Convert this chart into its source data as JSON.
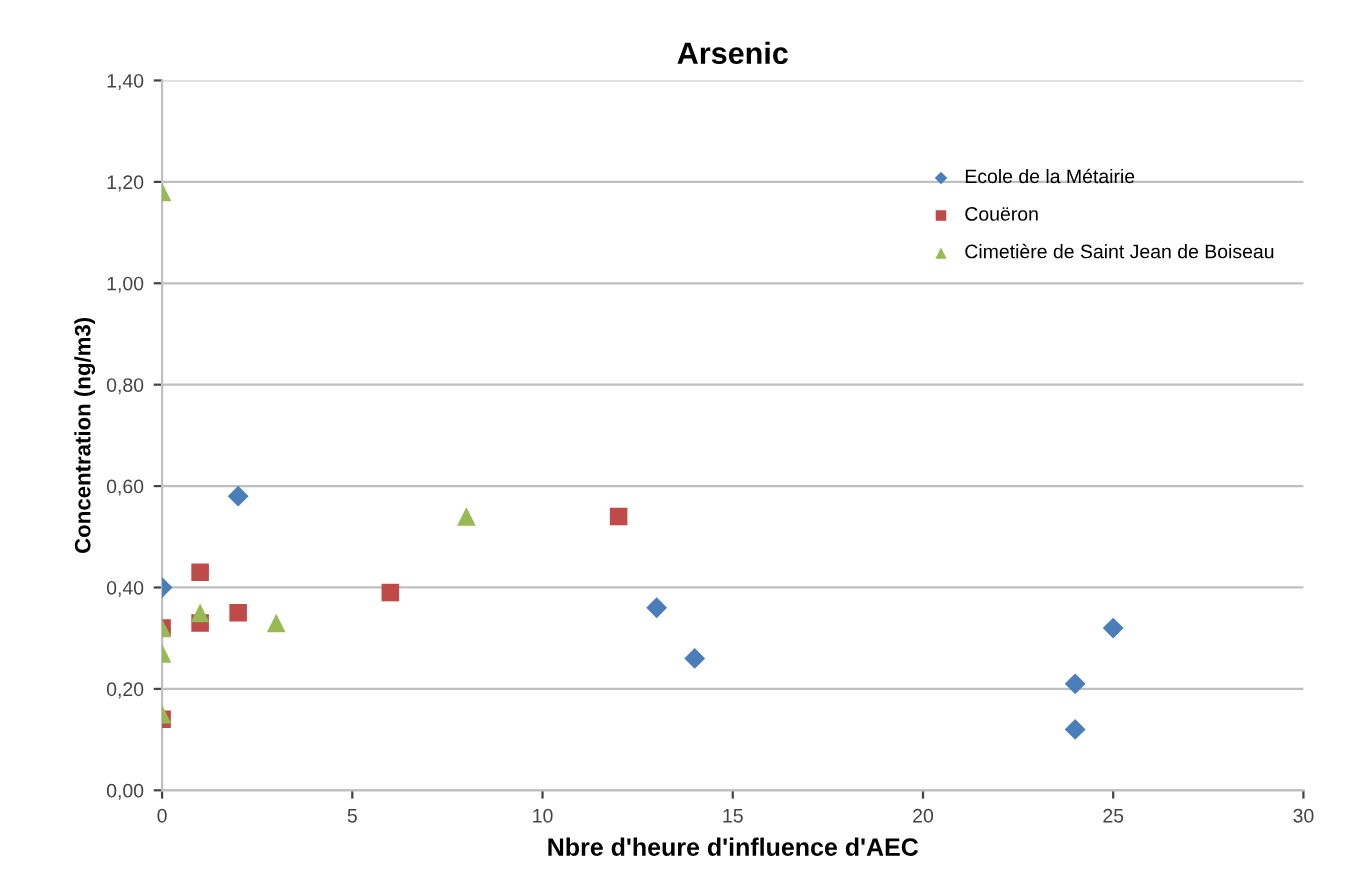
{
  "chart_data": {
    "type": "scatter",
    "title": "Arsenic",
    "xlabel": "Nbre d'heure d'influence d'AEC",
    "ylabel": "Concentration (ng/m3)",
    "series": [
      {
        "name": "Ecole de la Métairie",
        "color": "#4a7ebb",
        "marker": "diamond",
        "x": [
          0,
          2,
          13,
          14,
          24,
          24,
          25
        ],
        "values": [
          0.4,
          0.58,
          0.36,
          0.26,
          0.21,
          0.12,
          0.32
        ]
      },
      {
        "name": "Couëron",
        "color": "#be4b48",
        "marker": "square",
        "x": [
          0,
          0,
          1,
          1,
          2,
          6,
          12
        ],
        "values": [
          0.32,
          0.14,
          0.43,
          0.33,
          0.35,
          0.39,
          0.54
        ]
      },
      {
        "name": "Cimetière de Saint Jean de Boiseau",
        "color": "#98b954",
        "marker": "triangle",
        "x": [
          0,
          0,
          0,
          0,
          1,
          3,
          8
        ],
        "values": [
          1.18,
          0.32,
          0.27,
          0.15,
          0.35,
          0.33,
          0.54
        ]
      }
    ],
    "xlim": [
      0,
      30
    ],
    "xticks": [
      0,
      5,
      10,
      15,
      20,
      25,
      30
    ],
    "ylim": [
      0,
      1.4
    ],
    "yticks": [
      {
        "value": 0,
        "label": "0,00"
      },
      {
        "value": 0.2,
        "label": "0,20"
      },
      {
        "value": 0.4,
        "label": "0,40"
      },
      {
        "value": 0.6,
        "label": "0,60"
      },
      {
        "value": 0.8,
        "label": "0,80"
      },
      {
        "value": 1.0,
        "label": "1,00"
      },
      {
        "value": 1.2,
        "label": "1,20"
      },
      {
        "value": 1.4,
        "label": "1,40"
      }
    ],
    "grid": "y",
    "legend": "top right"
  }
}
